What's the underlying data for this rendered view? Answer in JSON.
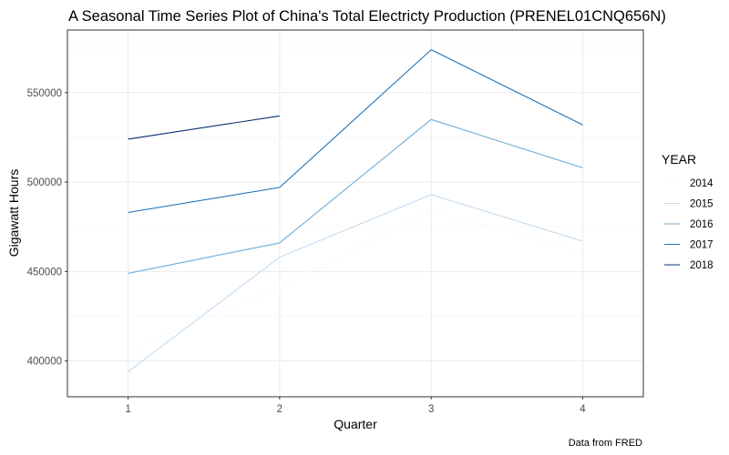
{
  "chart_data": {
    "type": "line",
    "title": "A Seasonal Time Series Plot of China's Total Electricty Production (PRENEL01CNQ656N)",
    "xlabel": "Quarter",
    "ylabel": "Gigawatt Hours",
    "caption": "Data from FRED",
    "legend_title": "YEAR",
    "legend_position": "right",
    "grid": true,
    "categories": [
      "1",
      "2",
      "3",
      "4"
    ],
    "xlim": [
      0.6,
      4.4
    ],
    "ylim": [
      380000,
      585000
    ],
    "y_ticks": [
      400000,
      450000,
      500000,
      550000
    ],
    "y_tick_labels": [
      "400000",
      "450000",
      "500000",
      "550000"
    ],
    "series": [
      {
        "name": "2014",
        "color": "#f7fbff",
        "values": [
          406000,
          441000,
          484000,
          461000
        ]
      },
      {
        "name": "2015",
        "color": "#c6dbef",
        "values": [
          394000,
          458000,
          493000,
          467000
        ]
      },
      {
        "name": "2016",
        "color": "#6baed6",
        "values": [
          449000,
          466000,
          535000,
          508000
        ]
      },
      {
        "name": "2017",
        "color": "#2171b5",
        "values": [
          483000,
          497000,
          574000,
          532000
        ]
      },
      {
        "name": "2018",
        "color": "#08306b",
        "values": [
          524000,
          537000,
          null,
          null
        ]
      }
    ]
  }
}
